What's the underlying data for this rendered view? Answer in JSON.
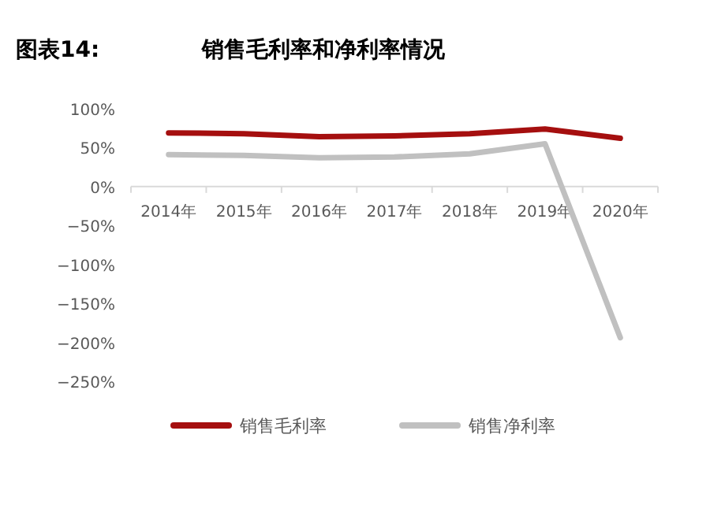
{
  "chart_data": {
    "type": "line",
    "title": "图表14:",
    "subtitle": "销售毛利率和净利率情况",
    "categories": [
      "2014年",
      "2015年",
      "2016年",
      "2017年",
      "2018年",
      "2019年",
      "2020年"
    ],
    "series": [
      {
        "name": "销售毛利率",
        "color": "#a50f0f",
        "values": [
          69,
          68,
          64,
          65,
          68,
          74,
          62
        ]
      },
      {
        "name": "销售净利率",
        "color": "#c0c0c0",
        "values": [
          41,
          40,
          37,
          38,
          42,
          55,
          -194
        ]
      }
    ],
    "ylim": [
      -250,
      100
    ],
    "yticks": [
      {
        "value": 100,
        "label": "100%"
      },
      {
        "value": 50,
        "label": "50%"
      },
      {
        "value": 0,
        "label": "0%"
      },
      {
        "value": -50,
        "label": "−50%"
      },
      {
        "value": -100,
        "label": "−100%"
      },
      {
        "value": -150,
        "label": "−150%"
      },
      {
        "value": -200,
        "label": "−200%"
      },
      {
        "value": -250,
        "label": "−250%"
      }
    ],
    "grid": false,
    "legend": "bottom",
    "marker": "none",
    "line_style": "solid"
  }
}
